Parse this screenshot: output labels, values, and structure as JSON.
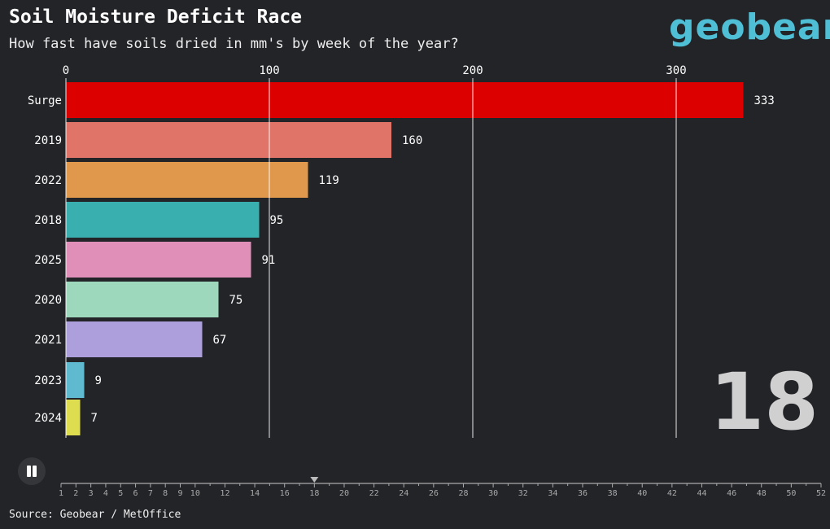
{
  "header": {
    "title": "Soil Moisture Deficit Race",
    "subtitle": "How fast have soils dried in mm's by week of the year?",
    "logo": "geobear"
  },
  "source": "Source: Geobear / MetOffice",
  "controls": {
    "pause_icon": "pause-icon"
  },
  "week_label": "18",
  "timeline": {
    "min": 1,
    "max": 52,
    "current": 18,
    "labels": [
      1,
      2,
      3,
      4,
      5,
      6,
      7,
      8,
      9,
      10,
      12,
      14,
      16,
      18,
      20,
      22,
      24,
      26,
      28,
      30,
      32,
      34,
      36,
      38,
      40,
      42,
      44,
      46,
      48,
      50,
      52
    ]
  },
  "chart_data": {
    "type": "bar",
    "orientation": "horizontal",
    "title": "Soil Moisture Deficit Race",
    "subtitle": "How fast have soils dried in mm's by week of the year?",
    "xlim": [
      0,
      333
    ],
    "xticks": [
      0,
      100,
      200,
      300
    ],
    "xaxis_position": "top",
    "grid": true,
    "categories": [
      "Surge",
      "2019",
      "2022",
      "2018",
      "2025",
      "2020",
      "2021",
      "2023",
      "2024"
    ],
    "values": [
      333,
      160,
      119,
      95,
      91,
      75,
      67,
      9,
      7
    ],
    "colors": [
      "#dd0000",
      "#e07468",
      "#e0984c",
      "#3aafb0",
      "#e08fb8",
      "#9dd8bd",
      "#ad9fdb",
      "#5fbad0",
      "#dedd50"
    ]
  }
}
